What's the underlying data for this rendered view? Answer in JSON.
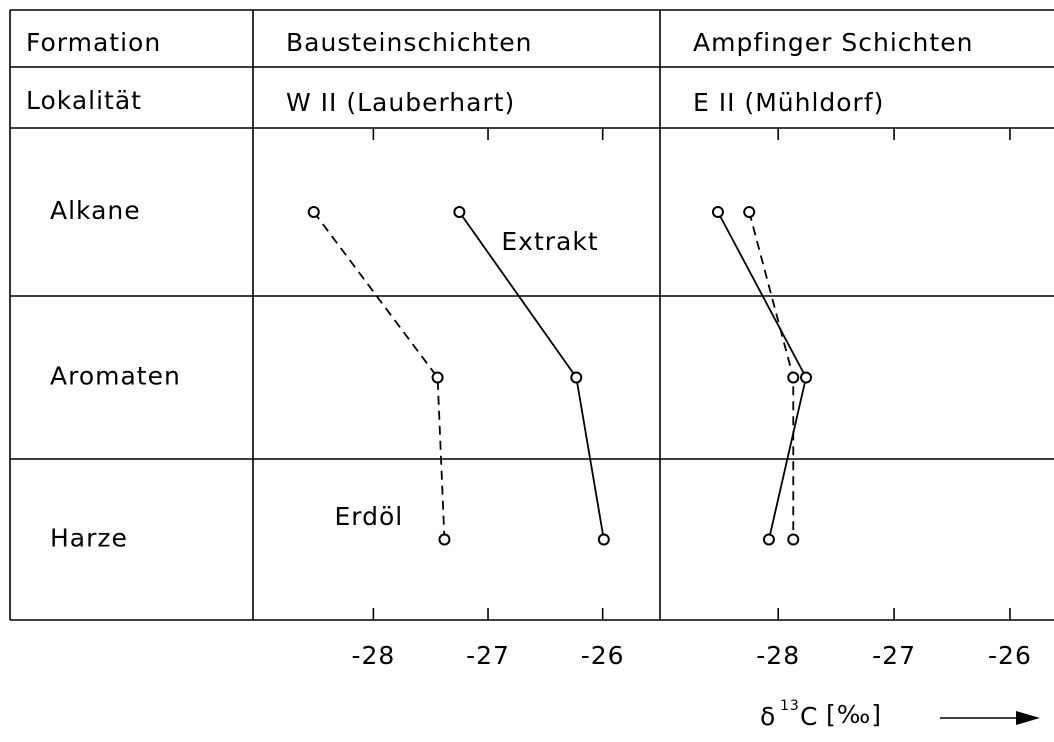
{
  "table": {
    "formation_label": "Formation",
    "locality_label": "Lokalität"
  },
  "xlabel": {
    "symbol": "δ",
    "superscript": "13",
    "unit": "C",
    "bracket": "[‰]"
  },
  "chart_data": [
    {
      "type": "line",
      "formation": "Bausteinschichten",
      "locality": "W II (Lauberhart)",
      "categories": [
        "Alkane",
        "Aromaten",
        "Harze"
      ],
      "series": [
        {
          "name": "Erdöl",
          "color": "#000000",
          "dashed": true,
          "values": [
            -28.52,
            -27.44,
            -27.38
          ]
        },
        {
          "name": "Extrakt",
          "color": "#000000",
          "dashed": false,
          "values": [
            -27.25,
            -26.23,
            -25.99
          ]
        }
      ],
      "xlim": [
        -29.05,
        -25.5
      ],
      "xticks": [
        -28,
        -27,
        -26
      ]
    },
    {
      "type": "line",
      "formation": "Ampfinger Schichten",
      "locality": "E II (Mühldorf)",
      "series": [
        {
          "color": "#000000",
          "dashed": true,
          "values": [
            -28.25,
            -27.87,
            -27.87
          ]
        },
        {
          "color": "#000000",
          "dashed": false,
          "values": [
            -28.52,
            -27.76,
            -28.08
          ]
        }
      ],
      "xlim": [
        -29.02,
        -25.62
      ],
      "xticks": [
        -28,
        -27,
        -26
      ]
    }
  ]
}
